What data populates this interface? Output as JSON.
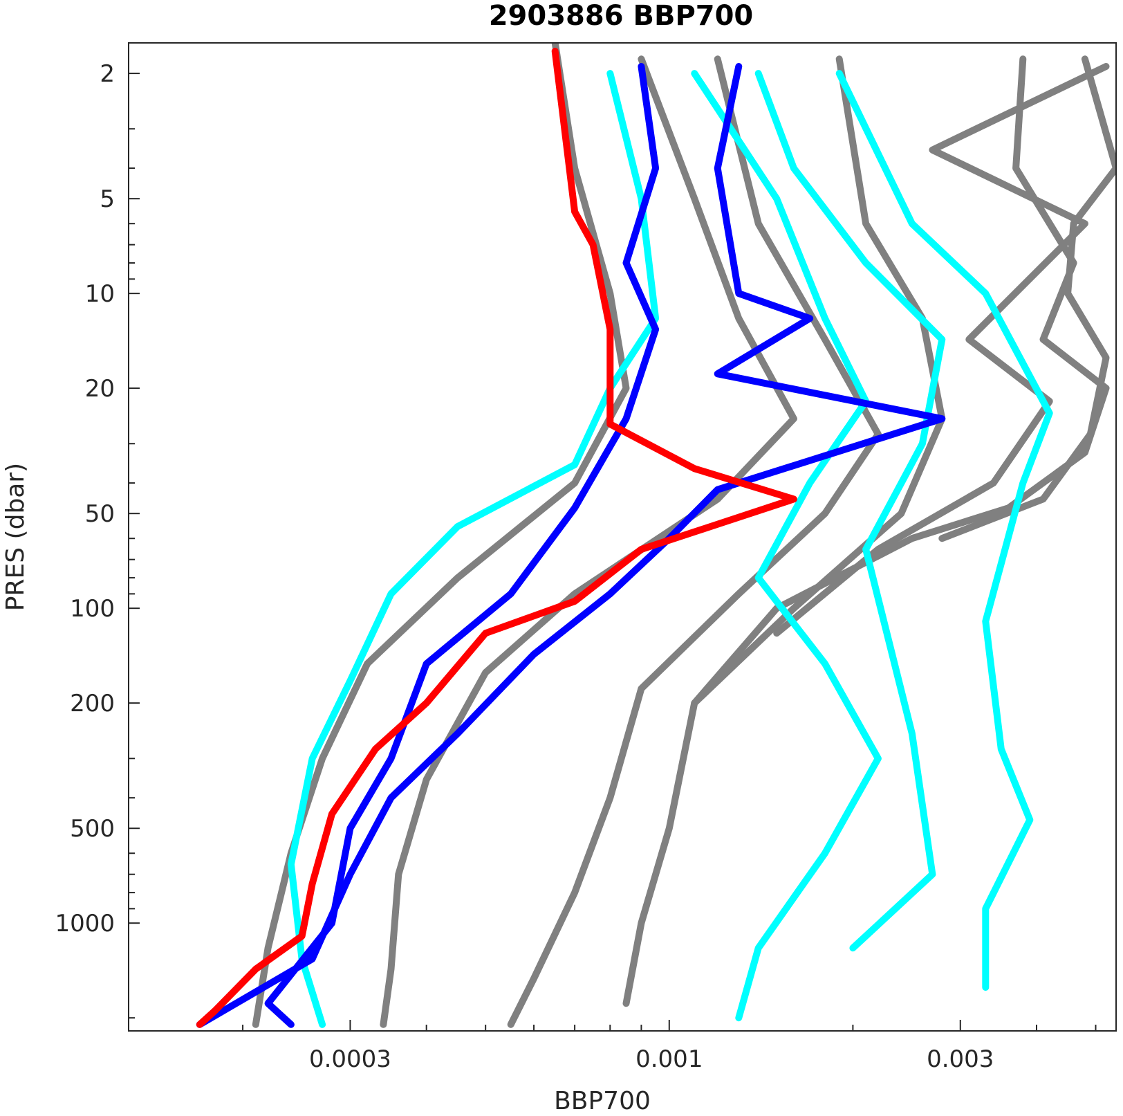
{
  "chart_data": {
    "type": "line",
    "title": "2903886 BBP700",
    "xlabel": "BBP700",
    "ylabel": "PRES (dbar)",
    "x_scale": "log",
    "y_scale": "log",
    "y_reversed": true,
    "xlim": [
      0.00013,
      0.0054
    ],
    "ylim": [
      1.6,
      2200
    ],
    "x_ticks": [
      {
        "value": 0.0003,
        "label": "0.0003"
      },
      {
        "value": 0.001,
        "label": "0.001"
      },
      {
        "value": 0.003,
        "label": "0.003"
      }
    ],
    "y_ticks": [
      {
        "value": 2,
        "label": "2"
      },
      {
        "value": 5,
        "label": "5"
      },
      {
        "value": 10,
        "label": "10"
      },
      {
        "value": 20,
        "label": "20"
      },
      {
        "value": 50,
        "label": "50"
      },
      {
        "value": 100,
        "label": "100"
      },
      {
        "value": 200,
        "label": "200"
      },
      {
        "value": 500,
        "label": "500"
      },
      {
        "value": 1000,
        "label": "1000"
      }
    ],
    "grid": false,
    "series": [
      {
        "color": "#808080",
        "points": [
          [
            0.00065,
            1.6
          ],
          [
            0.0007,
            4
          ],
          [
            0.0008,
            10
          ],
          [
            0.00085,
            20
          ],
          [
            0.0007,
            40
          ],
          [
            0.00045,
            80
          ],
          [
            0.00032,
            150
          ],
          [
            0.00027,
            300
          ],
          [
            0.00024,
            600
          ],
          [
            0.00022,
            1200
          ],
          [
            0.00021,
            2100
          ]
        ]
      },
      {
        "color": "#808080",
        "points": [
          [
            0.0009,
            1.8
          ],
          [
            0.0011,
            5
          ],
          [
            0.0013,
            12
          ],
          [
            0.0016,
            25
          ],
          [
            0.0012,
            45
          ],
          [
            0.0007,
            90
          ],
          [
            0.0005,
            160
          ],
          [
            0.0004,
            350
          ],
          [
            0.00036,
            700
          ],
          [
            0.00035,
            1400
          ],
          [
            0.00034,
            2100
          ]
        ]
      },
      {
        "color": "#808080",
        "points": [
          [
            0.0012,
            1.8
          ],
          [
            0.0014,
            6
          ],
          [
            0.0018,
            14
          ],
          [
            0.0022,
            28
          ],
          [
            0.0018,
            50
          ],
          [
            0.0013,
            90
          ],
          [
            0.0009,
            180
          ],
          [
            0.0008,
            400
          ],
          [
            0.0007,
            800
          ],
          [
            0.0006,
            1500
          ],
          [
            0.00055,
            2100
          ]
        ]
      },
      {
        "color": "#808080",
        "points": [
          [
            0.0019,
            1.8
          ],
          [
            0.0021,
            6
          ],
          [
            0.0026,
            12
          ],
          [
            0.0028,
            25
          ],
          [
            0.0024,
            50
          ],
          [
            0.0016,
            100
          ],
          [
            0.0011,
            200
          ],
          [
            0.001,
            500
          ],
          [
            0.0009,
            1000
          ],
          [
            0.00085,
            1800
          ]
        ]
      },
      {
        "color": "#808080",
        "points": [
          [
            0.0038,
            1.8
          ],
          [
            0.0037,
            4
          ],
          [
            0.0046,
            8
          ],
          [
            0.0041,
            14
          ],
          [
            0.0052,
            20
          ],
          [
            0.0048,
            32
          ],
          [
            0.0036,
            48
          ],
          [
            0.0025,
            60
          ],
          [
            0.0015,
            100
          ],
          [
            0.0011,
            200
          ]
        ]
      },
      {
        "color": "#808080",
        "points": [
          [
            0.0048,
            1.8
          ],
          [
            0.0054,
            4
          ],
          [
            0.0046,
            6
          ],
          [
            0.0045,
            10
          ],
          [
            0.0052,
            16
          ],
          [
            0.0049,
            28
          ],
          [
            0.0041,
            45
          ],
          [
            0.0028,
            60
          ]
        ]
      },
      {
        "color": "#808080",
        "points": [
          [
            0.0052,
            1.9
          ],
          [
            0.0027,
            3.5
          ],
          [
            0.0048,
            6
          ],
          [
            0.0031,
            14
          ],
          [
            0.0042,
            22
          ],
          [
            0.0034,
            40
          ],
          [
            0.0022,
            65
          ],
          [
            0.0015,
            120
          ]
        ]
      },
      {
        "color": "#00ffff",
        "points": [
          [
            0.0008,
            2
          ],
          [
            0.0009,
            5
          ],
          [
            0.00095,
            12
          ],
          [
            0.0008,
            20
          ],
          [
            0.0007,
            35
          ],
          [
            0.00045,
            55
          ],
          [
            0.00035,
            90
          ],
          [
            0.0003,
            170
          ],
          [
            0.00026,
            300
          ],
          [
            0.00024,
            650
          ],
          [
            0.00025,
            1300
          ],
          [
            0.00027,
            2100
          ]
        ]
      },
      {
        "color": "#00ffff",
        "points": [
          [
            0.0011,
            2
          ],
          [
            0.0015,
            5
          ],
          [
            0.0018,
            12
          ],
          [
            0.0021,
            22
          ],
          [
            0.0017,
            40
          ],
          [
            0.0014,
            80
          ],
          [
            0.0018,
            150
          ],
          [
            0.0022,
            300
          ],
          [
            0.0018,
            600
          ],
          [
            0.0014,
            1200
          ],
          [
            0.0013,
            2000
          ]
        ]
      },
      {
        "color": "#00ffff",
        "points": [
          [
            0.0019,
            2
          ],
          [
            0.0025,
            6
          ],
          [
            0.0033,
            10
          ],
          [
            0.0042,
            24
          ],
          [
            0.0038,
            40
          ],
          [
            0.0033,
            110
          ],
          [
            0.0035,
            280
          ],
          [
            0.0039,
            470
          ],
          [
            0.0033,
            900
          ],
          [
            0.0033,
            1600
          ]
        ]
      },
      {
        "color": "#00ffff",
        "points": [
          [
            0.0014,
            2
          ],
          [
            0.0016,
            4
          ],
          [
            0.0021,
            8
          ],
          [
            0.0028,
            14
          ],
          [
            0.0026,
            30
          ],
          [
            0.0021,
            65
          ],
          [
            0.0025,
            250
          ],
          [
            0.0027,
            700
          ],
          [
            0.002,
            1200
          ]
        ]
      },
      {
        "color": "#0000ff",
        "points": [
          [
            0.0009,
            1.9
          ],
          [
            0.00095,
            4
          ],
          [
            0.00085,
            8
          ],
          [
            0.00095,
            13
          ],
          [
            0.00085,
            25
          ],
          [
            0.0007,
            48
          ],
          [
            0.00055,
            90
          ],
          [
            0.0004,
            150
          ],
          [
            0.00035,
            300
          ],
          [
            0.0003,
            500
          ],
          [
            0.00028,
            1000
          ],
          [
            0.00022,
            1800
          ],
          [
            0.00024,
            2100
          ]
        ]
      },
      {
        "color": "#0000ff",
        "points": [
          [
            0.0013,
            1.9
          ],
          [
            0.0012,
            4
          ],
          [
            0.0013,
            10
          ],
          [
            0.0017,
            12
          ],
          [
            0.0012,
            18
          ],
          [
            0.0028,
            25
          ],
          [
            0.0012,
            42
          ],
          [
            0.001,
            60
          ],
          [
            0.0008,
            90
          ],
          [
            0.0006,
            140
          ],
          [
            0.00045,
            250
          ],
          [
            0.00035,
            400
          ],
          [
            0.0003,
            700
          ],
          [
            0.00026,
            1300
          ],
          [
            0.00017,
            2100
          ]
        ]
      },
      {
        "color": "#ff0000",
        "points": [
          [
            0.00065,
            1.7
          ],
          [
            0.0007,
            5.5
          ],
          [
            0.00075,
            7
          ],
          [
            0.0008,
            13
          ],
          [
            0.0008,
            26
          ],
          [
            0.0011,
            36
          ],
          [
            0.0016,
            45
          ],
          [
            0.0009,
            65
          ],
          [
            0.0007,
            95
          ],
          [
            0.0005,
            120
          ],
          [
            0.0004,
            200
          ],
          [
            0.00033,
            280
          ],
          [
            0.00028,
            450
          ],
          [
            0.00026,
            750
          ],
          [
            0.00025,
            1100
          ],
          [
            0.00021,
            1400
          ],
          [
            0.00018,
            1900
          ],
          [
            0.00017,
            2100
          ]
        ]
      }
    ]
  }
}
